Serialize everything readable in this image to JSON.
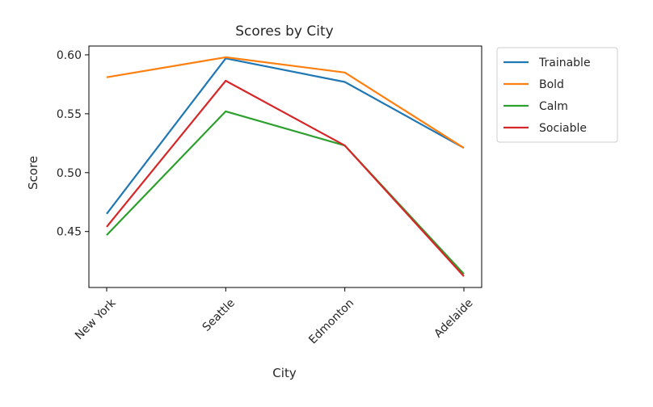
{
  "chart_data": {
    "type": "line",
    "title": "Scores by City",
    "xlabel": "City",
    "ylabel": "Score",
    "categories": [
      "New York",
      "Seattle",
      "Edmonton",
      "Adelaide"
    ],
    "ylim": [
      0.4025,
      0.6075
    ],
    "yticks": [
      0.45,
      0.5,
      0.55,
      0.6
    ],
    "ytick_labels": [
      "0.45",
      "0.50",
      "0.55",
      "0.60"
    ],
    "grid": false,
    "legend_position": "outside-top-right",
    "series": [
      {
        "name": "Trainable",
        "color": "#1f77b4",
        "values": [
          0.465,
          0.597,
          0.577,
          0.521
        ]
      },
      {
        "name": "Bold",
        "color": "#ff7f0e",
        "values": [
          0.581,
          0.598,
          0.585,
          0.521
        ]
      },
      {
        "name": "Calm",
        "color": "#2ca02c",
        "values": [
          0.447,
          0.552,
          0.523,
          0.414
        ]
      },
      {
        "name": "Sociable",
        "color": "#d62728",
        "values": [
          0.454,
          0.578,
          0.523,
          0.412
        ]
      }
    ]
  }
}
